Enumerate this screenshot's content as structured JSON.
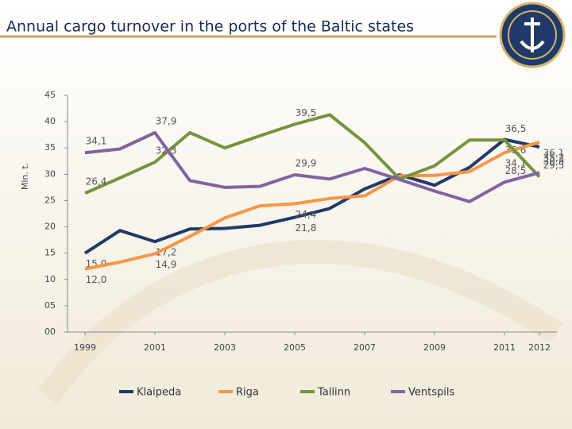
{
  "chart_data": {
    "type": "line",
    "title": "Annual cargo turnover in the ports of the Baltic states",
    "y_label": "Mln. t.",
    "x": [
      1999,
      2000,
      2001,
      2002,
      2003,
      2004,
      2005,
      2006,
      2007,
      2008,
      2009,
      2010,
      2011,
      2012
    ],
    "xlim": [
      1998.5,
      2012.5
    ],
    "xticks": [
      1999,
      2001,
      2003,
      2005,
      2007,
      2009,
      2011,
      2012
    ],
    "ylim": [
      0,
      45
    ],
    "yticks": [
      {
        "value": 0,
        "label": "00"
      },
      {
        "value": 5,
        "label": "05"
      },
      10,
      15,
      20,
      25,
      30,
      35,
      40,
      45
    ],
    "grid": false,
    "legend": "bottom",
    "series": [
      {
        "name": "Klaipeda",
        "color": "#1f3a68",
        "values": [
          15.0,
          19.3,
          17.2,
          19.6,
          19.7,
          20.3,
          21.8,
          23.5,
          27.2,
          29.9,
          27.9,
          31.3,
          36.6,
          35.2
        ],
        "value_labels": [
          "15,0",
          null,
          "17,2",
          null,
          null,
          null,
          "21,8",
          null,
          null,
          null,
          null,
          null,
          "36,6",
          "35,2"
        ]
      },
      {
        "name": "Riga",
        "color": "#f79646",
        "values": [
          12.0,
          13.3,
          14.9,
          18.2,
          21.7,
          24.0,
          24.4,
          25.4,
          25.9,
          29.7,
          29.8,
          30.5,
          34.1,
          36.1
        ],
        "value_labels": [
          "12,0",
          null,
          "14,9",
          null,
          null,
          null,
          "24,4",
          null,
          null,
          null,
          null,
          null,
          "34,1",
          "36,1"
        ]
      },
      {
        "name": "Tallinn",
        "color": "#77933c",
        "values": [
          26.4,
          29.3,
          32.3,
          37.9,
          35.0,
          37.3,
          39.5,
          41.3,
          36.0,
          29.1,
          31.6,
          36.5,
          36.5,
          29.5
        ],
        "value_labels": [
          "26,4",
          null,
          "32,3",
          null,
          null,
          null,
          "39,5",
          null,
          null,
          null,
          null,
          null,
          "36,5",
          "29,5"
        ]
      },
      {
        "name": "Ventspils",
        "color": "#8064a2",
        "values": [
          34.1,
          34.8,
          37.9,
          28.8,
          27.5,
          27.7,
          29.9,
          29.1,
          31.1,
          29.0,
          26.8,
          24.8,
          28.5,
          30.3
        ],
        "value_labels": [
          "34,1",
          null,
          "37,9",
          null,
          null,
          null,
          "29,9",
          null,
          null,
          null,
          null,
          null,
          "28,5",
          "30,3"
        ]
      }
    ]
  }
}
